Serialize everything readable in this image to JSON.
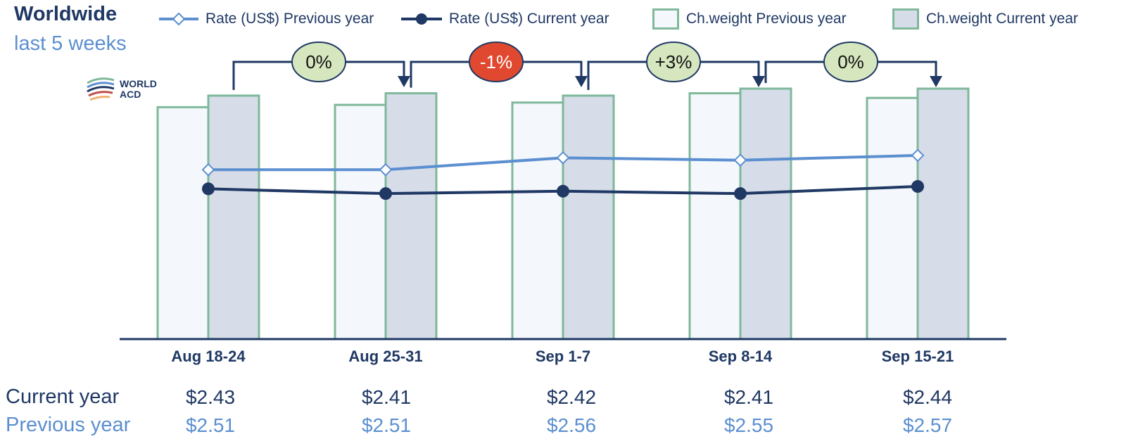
{
  "header": {
    "title": "Worldwide",
    "subtitle": "last 5 weeks"
  },
  "logo": {
    "line1": "WORLD",
    "line2": "ACD"
  },
  "legend": [
    {
      "label": "Rate (US$) Previous year",
      "icon": "open-diamond-line",
      "color": "#5b8fd0"
    },
    {
      "label": "Rate (US$) Current year",
      "icon": "filled-circle-line",
      "color": "#1f3864"
    },
    {
      "label": "Ch.weight Previous year",
      "icon": "light-bar",
      "color": "#f4f7fb"
    },
    {
      "label": "Ch.weight Current year",
      "icon": "shaded-bar",
      "color": "#d6dde9"
    }
  ],
  "colors": {
    "bar_border": "#7fb89a",
    "bar_prev_fill": "#f4f7fb",
    "bar_cur_fill": "#d6dde9",
    "line_prev": "#5b8fd0",
    "line_cur": "#1f3864",
    "axis": "#1f3864",
    "badge_positive": "#d6e6bf",
    "badge_negative": "#e0492f"
  },
  "table": {
    "current_label": "Current year",
    "previous_label": "Previous year",
    "current_values": [
      "$2.43",
      "$2.41",
      "$2.42",
      "$2.41",
      "$2.44"
    ],
    "previous_values": [
      "$2.51",
      "$2.51",
      "$2.56",
      "$2.55",
      "$2.57"
    ]
  },
  "chart_data": {
    "type": "bar",
    "categories": [
      "Aug 18-24",
      "Aug 25-31",
      "Sep 1-7",
      "Sep 8-14",
      "Sep 15-21"
    ],
    "series": [
      {
        "name": "Ch.weight Previous year",
        "type": "bar",
        "values": [
          100,
          101,
          102,
          106,
          104
        ]
      },
      {
        "name": "Ch.weight Current year",
        "type": "bar",
        "values": [
          105,
          106,
          105,
          108,
          108
        ]
      },
      {
        "name": "Rate (US$) Previous year",
        "type": "line",
        "values": [
          2.51,
          2.51,
          2.56,
          2.55,
          2.57
        ]
      },
      {
        "name": "Rate (US$) Current year",
        "type": "line",
        "values": [
          2.43,
          2.41,
          2.42,
          2.41,
          2.44
        ]
      }
    ],
    "weight_axis_range": [
      0,
      108
    ],
    "rate_axis_range": [
      1.8,
      2.85
    ],
    "change_badges": [
      {
        "from": "Aug 18-24",
        "to": "Aug 25-31",
        "label": "0%",
        "sentiment": "neutral"
      },
      {
        "from": "Aug 25-31",
        "to": "Sep 1-7",
        "label": "-1%",
        "sentiment": "negative"
      },
      {
        "from": "Sep 1-7",
        "to": "Sep 8-14",
        "label": "+3%",
        "sentiment": "positive"
      },
      {
        "from": "Sep 8-14",
        "to": "Sep 15-21",
        "label": "0%",
        "sentiment": "neutral"
      }
    ],
    "grid": false,
    "legend_position": "top"
  }
}
